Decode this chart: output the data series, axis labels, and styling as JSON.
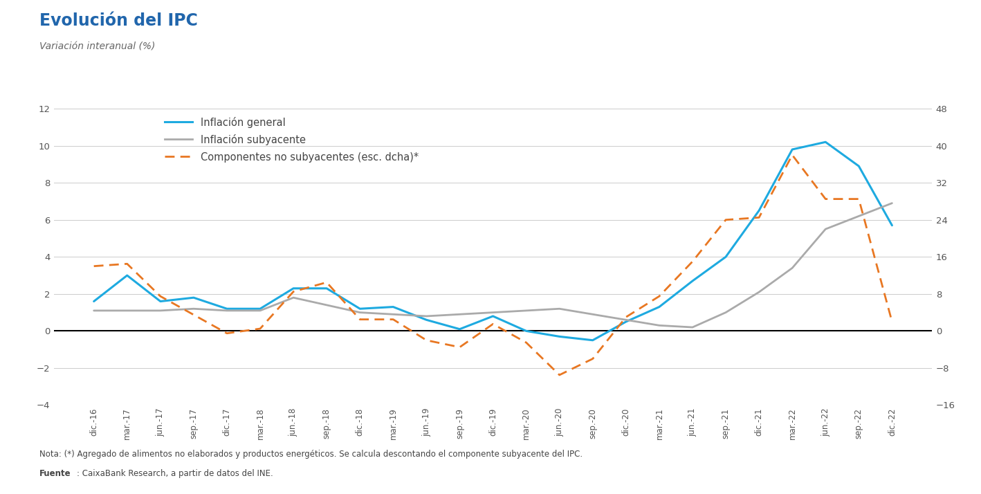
{
  "title": "Evolución del IPC",
  "ylabel_left": "Variación interanual (%)",
  "ylim_left": [
    -4,
    12
  ],
  "ylim_right": [
    -16,
    48
  ],
  "yticks_left": [
    -4,
    -2,
    0,
    2,
    4,
    6,
    8,
    10,
    12
  ],
  "yticks_right": [
    -16,
    -8,
    0,
    8,
    16,
    24,
    32,
    40,
    48
  ],
  "note": "Nota: (*) Agregado de alimentos no elaborados y productos energéticos. Se calcula descontando el componente subyacente del IPC.",
  "fuente_bold": "Fuente",
  "fuente_rest": ": CaixaBank Research, a partir de datos del INE.",
  "legend": [
    "Inflación general",
    "Inflación subyacente",
    "Componentes no subyacentes (esc. dcha)*"
  ],
  "colors": {
    "inflacion_general": "#1EAAE0",
    "inflacion_subyacente": "#AAAAAA",
    "componentes": "#E87722"
  },
  "x_labels": [
    "dic.-16",
    "mar.-17",
    "jun.-17",
    "sep.-17",
    "dic.-17",
    "mar.-18",
    "jun.-18",
    "sep.-18",
    "dic.-18",
    "mar.-19",
    "jun.-19",
    "sep.-19",
    "dic.-19",
    "mar.-20",
    "jun.-20",
    "sep.-20",
    "dic.-20",
    "mar.-21",
    "jun.-21",
    "sep.-21",
    "dic.-21",
    "mar.-22",
    "jun.-22",
    "sep.-22",
    "dic.-22"
  ],
  "ig_data": [
    1.6,
    3.0,
    1.6,
    1.8,
    1.2,
    1.2,
    2.3,
    2.3,
    1.2,
    1.3,
    0.6,
    0.1,
    0.8,
    0.0,
    -0.3,
    -0.5,
    0.5,
    1.3,
    2.7,
    4.0,
    6.5,
    9.8,
    10.2,
    8.9,
    5.7
  ],
  "isc_data": [
    1.1,
    1.1,
    1.1,
    1.2,
    1.1,
    1.1,
    1.8,
    1.4,
    1.0,
    0.9,
    0.8,
    0.9,
    1.0,
    1.1,
    1.2,
    0.9,
    0.6,
    0.3,
    0.2,
    1.0,
    2.1,
    3.4,
    5.5,
    6.2,
    6.9
  ],
  "comp_data": [
    14.0,
    14.5,
    7.5,
    3.5,
    -0.5,
    0.5,
    8.5,
    10.5,
    2.5,
    2.5,
    -2.0,
    -3.5,
    1.5,
    -2.5,
    -9.5,
    -6.0,
    3.0,
    7.5,
    15.0,
    24.0,
    24.5,
    38.0,
    28.5,
    28.5,
    2.0
  ]
}
